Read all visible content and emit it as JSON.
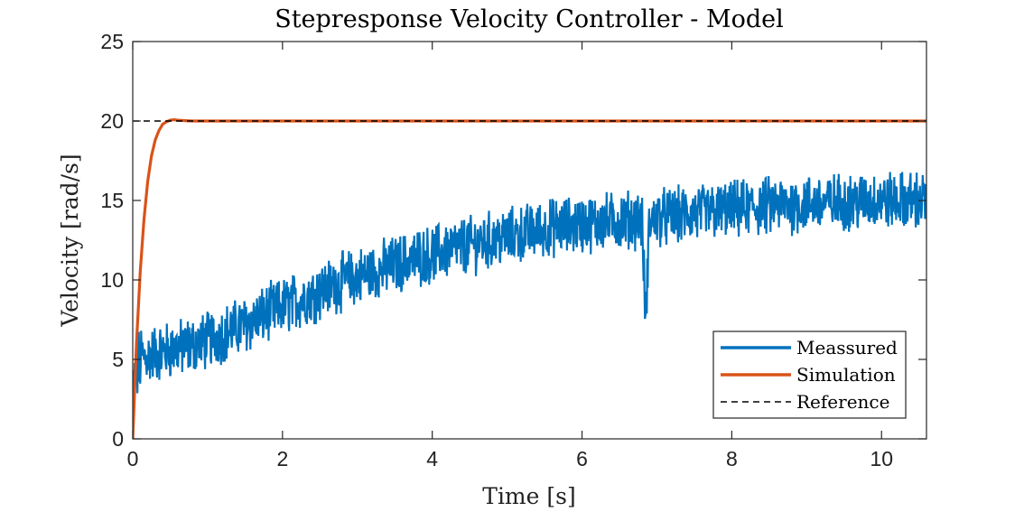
{
  "chart_data": {
    "type": "line",
    "title": "Stepresponse Velocity Controller - Model",
    "xlabel": "Time [s]",
    "ylabel": "Velocity [rad/s]",
    "xlim": [
      0,
      10.6
    ],
    "ylim": [
      0,
      25
    ],
    "xticks": [
      0,
      2,
      4,
      6,
      8,
      10
    ],
    "yticks": [
      0,
      5,
      10,
      15,
      20,
      25
    ],
    "xtick_labels": [
      "0",
      "2",
      "4",
      "6",
      "8",
      "10"
    ],
    "ytick_labels": [
      "0",
      "5",
      "10",
      "15",
      "20",
      "25"
    ],
    "grid": false,
    "box": true,
    "legend_position": "bottom-right",
    "series": [
      {
        "name": "Meassured",
        "color": "#0072BD",
        "style": "solid",
        "x": [
          0,
          0.05,
          0.1,
          0.2,
          0.3,
          0.4,
          0.5,
          0.6,
          0.8,
          1.0,
          1.2,
          1.4,
          1.6,
          1.8,
          2.0,
          2.2,
          2.4,
          2.6,
          2.8,
          3.0,
          3.2,
          3.4,
          3.6,
          3.8,
          4.0,
          4.2,
          4.4,
          4.6,
          4.8,
          5.0,
          5.2,
          5.4,
          5.6,
          5.8,
          6.0,
          6.2,
          6.4,
          6.6,
          6.8,
          6.85,
          6.9,
          7.0,
          7.2,
          7.4,
          7.6,
          7.8,
          8.0,
          8.2,
          8.4,
          8.6,
          8.8,
          9.0,
          9.2,
          9.4,
          9.6,
          9.8,
          10.0,
          10.2,
          10.4,
          10.6
        ],
        "y": [
          3.0,
          4.2,
          5.0,
          5.2,
          5.4,
          5.5,
          5.6,
          5.7,
          5.9,
          6.2,
          6.6,
          7.0,
          7.4,
          7.9,
          8.3,
          8.7,
          9.1,
          9.5,
          9.9,
          10.2,
          10.5,
          10.8,
          11.1,
          11.4,
          11.6,
          11.9,
          12.1,
          12.3,
          12.5,
          12.7,
          12.9,
          13.1,
          13.3,
          13.4,
          13.5,
          13.6,
          13.7,
          13.8,
          13.8,
          7.2,
          13.7,
          13.9,
          14.0,
          14.1,
          14.2,
          14.3,
          14.4,
          14.5,
          14.6,
          14.7,
          14.7,
          14.8,
          14.8,
          14.9,
          14.9,
          15.0,
          15.0,
          15.0,
          15.0,
          15.0
        ],
        "noise_amplitude": 1.6
      },
      {
        "name": "Simulation",
        "color": "#D95319",
        "style": "solid",
        "x": [
          0,
          0.05,
          0.1,
          0.15,
          0.2,
          0.25,
          0.3,
          0.35,
          0.4,
          0.45,
          0.5,
          0.55,
          0.6,
          0.7,
          0.8,
          1.0,
          2.0,
          4.0,
          6.0,
          8.0,
          10.0,
          10.6
        ],
        "y": [
          0,
          6.0,
          10.5,
          13.8,
          16.2,
          17.8,
          18.8,
          19.4,
          19.8,
          19.95,
          20.05,
          20.08,
          20.05,
          20.02,
          20.0,
          20.0,
          20.0,
          20.0,
          20.0,
          20.0,
          20.0,
          20.0
        ]
      },
      {
        "name": "Reference",
        "color": "#000000",
        "style": "dashed",
        "x": [
          0,
          10.6
        ],
        "y": [
          20,
          20
        ]
      }
    ]
  }
}
